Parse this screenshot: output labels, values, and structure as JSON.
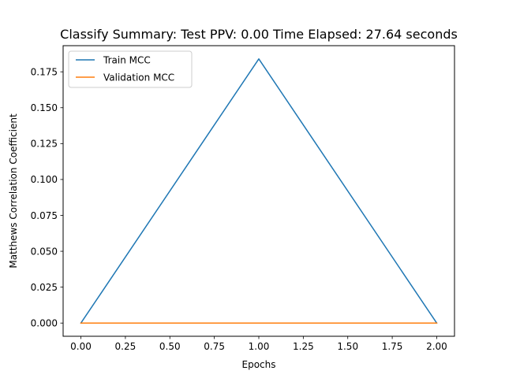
{
  "chart_data": {
    "type": "line",
    "title": "Classify Summary: Test PPV: 0.00 Time Elapsed: 27.64 seconds",
    "xlabel": "Epochs",
    "ylabel": "Matthews Correlation Coefficient",
    "xlim": [
      -0.1,
      2.1
    ],
    "ylim": [
      -0.0092,
      0.1932
    ],
    "x_ticks": [
      0.0,
      0.25,
      0.5,
      0.75,
      1.0,
      1.25,
      1.5,
      1.75,
      2.0
    ],
    "x_tick_labels": [
      "0.00",
      "0.25",
      "0.50",
      "0.75",
      "1.00",
      "1.25",
      "1.50",
      "1.75",
      "2.00"
    ],
    "y_ticks": [
      0.0,
      0.025,
      0.05,
      0.075,
      0.1,
      0.125,
      0.15,
      0.175
    ],
    "y_tick_labels": [
      "0.000",
      "0.025",
      "0.050",
      "0.075",
      "0.100",
      "0.125",
      "0.150",
      "0.175"
    ],
    "grid": false,
    "legend_position": "top-left",
    "x": [
      0,
      1,
      2
    ],
    "series": [
      {
        "name": "Train MCC",
        "color": "#1f77b4",
        "values": [
          0.0,
          0.184,
          0.0
        ]
      },
      {
        "name": "Validation MCC",
        "color": "#ff7f0e",
        "values": [
          0.0,
          0.0,
          0.0
        ]
      }
    ]
  }
}
